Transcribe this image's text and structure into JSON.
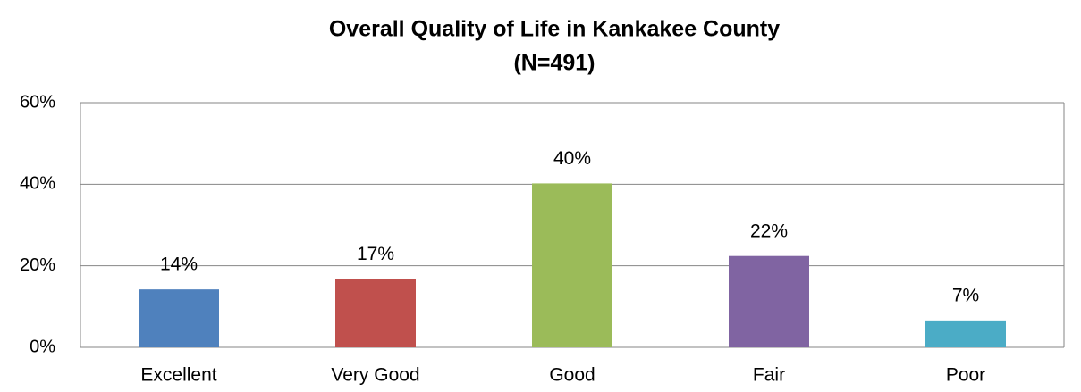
{
  "chart_data": {
    "type": "bar",
    "title": "Overall Quality of Life in Kankakee County",
    "subtitle": "(N=491)",
    "categories": [
      "Excellent",
      "Very Good",
      "Good",
      "Fair",
      "Poor"
    ],
    "values": [
      14.2,
      16.8,
      40.2,
      22.4,
      6.6
    ],
    "value_labels": [
      "14%",
      "17%",
      "40%",
      "22%",
      "7%"
    ],
    "colors": [
      "#4f81bd",
      "#c0504d",
      "#9bbb59",
      "#8064a2",
      "#4bacc6"
    ],
    "ylim": [
      0,
      60
    ],
    "yticks": [
      {
        "value": 0,
        "label": "0%"
      },
      {
        "value": 20,
        "label": "20%"
      },
      {
        "value": 40,
        "label": "40%"
      },
      {
        "value": 60,
        "label": "60%"
      }
    ],
    "grid": true
  }
}
